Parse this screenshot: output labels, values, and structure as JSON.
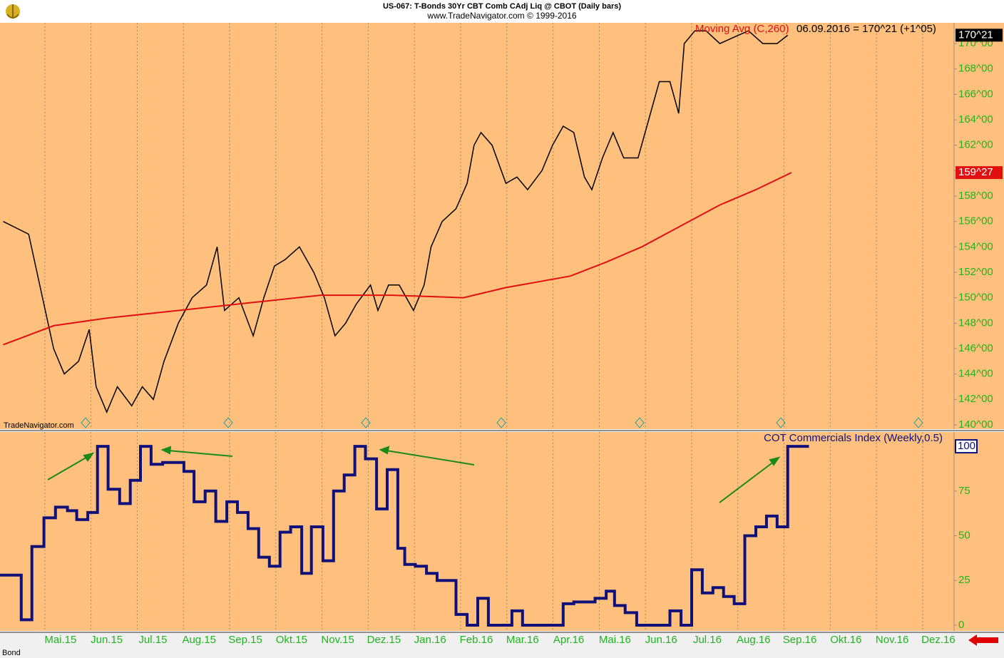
{
  "chart_data": [
    {
      "type": "line",
      "title": "US-067:  T-Bonds 30Yr CBT Comb CAdj Liq @ CBOT  (Daily bars)",
      "subtitle": "www.TradeNavigator.com © 1999-2016",
      "watermark": "TradeNavigator.com",
      "legend_text": "06.09.2016 = 170^21 (+1^05)",
      "xlim": [
        -0.97,
        19.68
      ],
      "ylim": [
        139.66,
        171.63
      ],
      "yticks": [
        {
          "value": 140,
          "label": "140^00"
        },
        {
          "value": 142,
          "label": "142^00"
        },
        {
          "value": 144,
          "label": "144^00"
        },
        {
          "value": 146,
          "label": "146^00"
        },
        {
          "value": 148,
          "label": "148^00"
        },
        {
          "value": 150,
          "label": "150^00"
        },
        {
          "value": 152,
          "label": "152^00"
        },
        {
          "value": 154,
          "label": "154^00"
        },
        {
          "value": 156,
          "label": "156^00"
        },
        {
          "value": 158,
          "label": "158^00"
        },
        {
          "value": 160,
          "label": "160^00"
        },
        {
          "value": 162,
          "label": "162^00"
        },
        {
          "value": 164,
          "label": "164^00"
        },
        {
          "value": 166,
          "label": "166^00"
        },
        {
          "value": 168,
          "label": "168^00"
        },
        {
          "value": 170,
          "label": "170^00"
        }
      ],
      "grid": "x",
      "background": "#ffc07e",
      "series": [
        {
          "color": "#000000",
          "last_label": {
            "value": 170.65625,
            "label": "170^21"
          },
          "x": [
            -0.9,
            -0.35,
            -0.05,
            0.19,
            0.42,
            0.73,
            0.96,
            1.11,
            1.34,
            1.57,
            1.88,
            2.11,
            2.35,
            2.58,
            2.89,
            3.19,
            3.5,
            3.73,
            3.89,
            4.2,
            4.51,
            4.74,
            4.97,
            5.2,
            5.51,
            5.82,
            6.05,
            6.28,
            6.51,
            6.74,
            7.05,
            7.21,
            7.44,
            7.67,
            7.98,
            8.21,
            8.36,
            8.6,
            8.9,
            9.14,
            9.29,
            9.44,
            9.68,
            9.98,
            10.22,
            10.45,
            10.76,
            10.99,
            11.22,
            11.45,
            11.68,
            11.84,
            12.07,
            12.3,
            12.53,
            12.84,
            13.07,
            13.3,
            13.53,
            13.72,
            13.84,
            14.07,
            14.31,
            14.61,
            14.92,
            15.23,
            15.54,
            15.85,
            16.08
          ],
          "values": [
            156,
            155,
            150,
            146,
            144,
            145,
            147.5,
            143,
            141,
            143,
            141.5,
            143,
            142,
            145,
            148,
            150,
            151,
            154,
            149,
            150,
            147,
            150,
            152.5,
            153,
            154,
            152,
            150,
            147,
            148,
            149.5,
            151,
            149,
            151,
            151,
            149,
            151,
            154,
            156,
            157,
            159,
            162,
            163,
            162,
            159,
            159.5,
            158.5,
            160,
            162,
            163.5,
            163,
            159.5,
            158.5,
            161,
            163,
            161,
            161,
            164,
            167,
            167,
            164.5,
            170,
            171,
            171,
            170,
            170.5,
            171,
            170,
            170,
            170.65625
          ]
        },
        {
          "name": "Moving Avg (C,260)",
          "color": "#e01010",
          "last_label": {
            "value": 159.84375,
            "label": "159^27"
          },
          "x": [
            -0.9,
            0.19,
            1.34,
            2.89,
            4.43,
            5.97,
            7.52,
            9.06,
            9.98,
            11.37,
            12.15,
            12.92,
            13.84,
            14.61,
            15.39,
            16.16
          ],
          "values": [
            146.3,
            147.8,
            148.4,
            149,
            149.6,
            150.2,
            150.2,
            150,
            150.8,
            151.7,
            152.8,
            154,
            155.8,
            157.3,
            158.5,
            159.84375
          ]
        }
      ]
    },
    {
      "type": "line",
      "step": true,
      "footer": "Bond",
      "xlim": [
        -0.97,
        19.68
      ],
      "xticks": [
        {
          "value": 0,
          "label": "Mai.15"
        },
        {
          "value": 1,
          "label": "Jun.15"
        },
        {
          "value": 2,
          "label": "Jul.15"
        },
        {
          "value": 3,
          "label": "Aug.15"
        },
        {
          "value": 4,
          "label": "Sep.15"
        },
        {
          "value": 5,
          "label": "Okt.15"
        },
        {
          "value": 6,
          "label": "Nov.15"
        },
        {
          "value": 7,
          "label": "Dez.15"
        },
        {
          "value": 8,
          "label": "Jan.16"
        },
        {
          "value": 9,
          "label": "Feb.16"
        },
        {
          "value": 10,
          "label": "Mar.16"
        },
        {
          "value": 11,
          "label": "Apr.16"
        },
        {
          "value": 12,
          "label": "Mai.16"
        },
        {
          "value": 13,
          "label": "Jun.16"
        },
        {
          "value": 14,
          "label": "Jul.16"
        },
        {
          "value": 15,
          "label": "Aug.16"
        },
        {
          "value": 16,
          "label": "Sep.16"
        },
        {
          "value": 17,
          "label": "Okt.16"
        },
        {
          "value": 18,
          "label": "Nov.16"
        },
        {
          "value": 19,
          "label": "Dez.16"
        }
      ],
      "ylim": [
        -3.2,
        108
      ],
      "yticks": [
        0,
        25,
        50,
        75,
        100
      ],
      "grid": "x",
      "background": "#ffc07e",
      "series": [
        {
          "name": "COT Commercials Index (Weekly,0.5)",
          "color": "#10107a",
          "x": [
            -0.97,
            -0.51,
            -0.28,
            -0.02,
            0.23,
            0.49,
            0.69,
            0.93,
            1.14,
            1.37,
            1.62,
            1.85,
            2.07,
            2.3,
            2.55,
            3.01,
            3.23,
            3.47,
            3.7,
            3.94,
            4.17,
            4.4,
            4.63,
            4.86,
            5.09,
            5.32,
            5.56,
            5.77,
            6.02,
            6.25,
            6.48,
            6.71,
            6.94,
            7.18,
            7.41,
            7.64,
            7.79,
            8.02,
            8.26,
            8.49,
            8.9,
            9.14,
            9.37,
            9.6,
            10.11,
            10.34,
            11.22,
            11.45,
            11.91,
            12.15,
            12.33,
            12.56,
            12.81,
            13.53,
            13.77,
            14.0,
            14.23,
            14.46,
            14.69,
            14.92,
            15.15,
            15.39,
            15.62,
            15.85,
            16.08,
            16.54
          ],
          "values": [
            28,
            3,
            44,
            60,
            66,
            64,
            59,
            63,
            100,
            76,
            68,
            81,
            100,
            90,
            91,
            86,
            69,
            75,
            58,
            69,
            63,
            54,
            38,
            33,
            52,
            55,
            29,
            55,
            36,
            75,
            84,
            100,
            93,
            65,
            87,
            43,
            34,
            33,
            29,
            25,
            6,
            0,
            15,
            0,
            8,
            0,
            12,
            13,
            15,
            19,
            11,
            7,
            0,
            8,
            0,
            31,
            18,
            21,
            16,
            12,
            50,
            55,
            61,
            55,
            100,
            100
          ]
        }
      ]
    }
  ]
}
